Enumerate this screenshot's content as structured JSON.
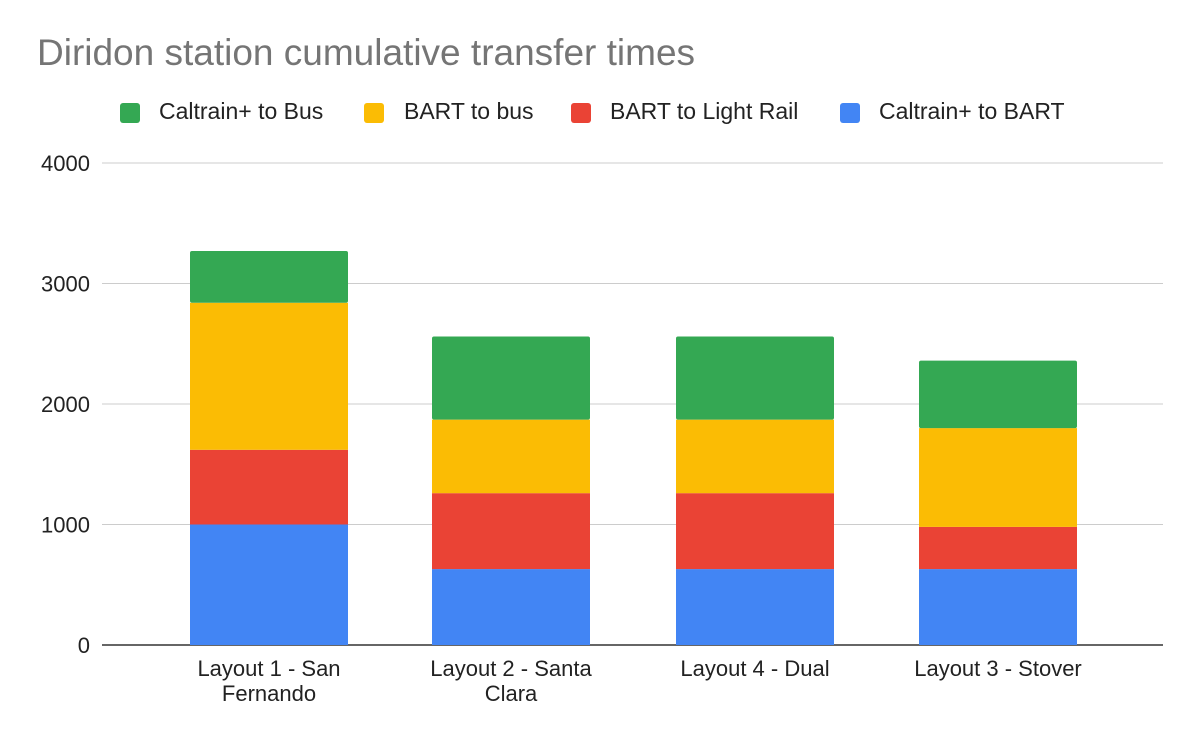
{
  "chart_data": {
    "type": "bar",
    "stacked": true,
    "title": "Diridon station cumulative transfer times",
    "xlabel": "",
    "ylabel": "",
    "ylim": [
      0,
      4000
    ],
    "yticks": [
      0,
      1000,
      2000,
      3000,
      4000
    ],
    "grid": true,
    "legend_position": "top",
    "categories": [
      [
        "Layout 1 - San",
        "Fernando"
      ],
      [
        "Layout 2 - Santa",
        "Clara"
      ],
      [
        "Layout 4 - Dual"
      ],
      [
        "Layout 3 - Stover"
      ]
    ],
    "series": [
      {
        "name": "Caltrain+ to BART",
        "color": "#4285f4",
        "values": [
          1000,
          630,
          630,
          630
        ]
      },
      {
        "name": "BART to Light Rail",
        "color": "#ea4335",
        "values": [
          620,
          630,
          630,
          350
        ]
      },
      {
        "name": "BART to bus",
        "color": "#fbbc04",
        "values": [
          1220,
          610,
          610,
          820
        ]
      },
      {
        "name": "Caltrain+ to Bus",
        "color": "#34a853",
        "values": [
          430,
          690,
          690,
          560
        ]
      }
    ],
    "legend_order": [
      "Caltrain+ to Bus",
      "BART to bus",
      "BART to Light Rail",
      "Caltrain+ to BART"
    ]
  }
}
